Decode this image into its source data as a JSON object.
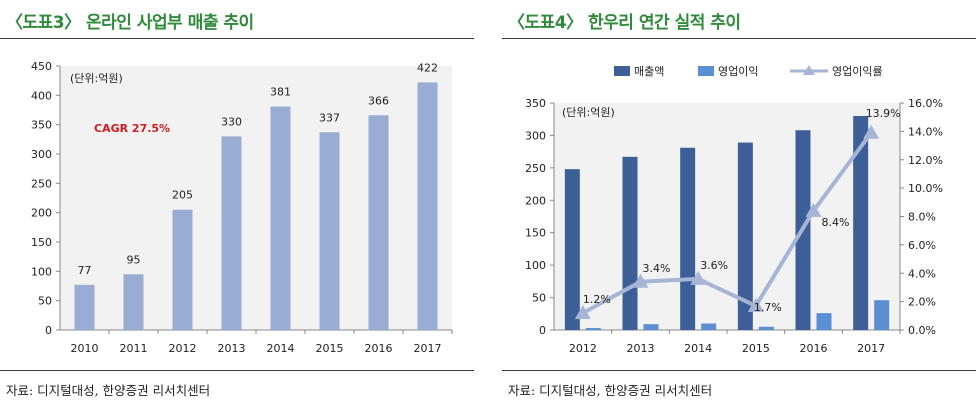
{
  "panels": [
    {
      "title": "〈도표3〉 온라인 사업부 매출 추이",
      "source": "자료: 디지털대성, 한양증권 리서치센터",
      "unit_label": "(단위:억원)",
      "annotation": "CAGR 27.5%"
    },
    {
      "title": "〈도표4〉 한우리 연간 실적 추이",
      "source": "자료: 디지털대성, 한양증권 리서치센터",
      "unit_label": "(단위:억원)"
    }
  ],
  "chart_data": [
    {
      "type": "bar",
      "categories": [
        "2010",
        "2011",
        "2012",
        "2013",
        "2014",
        "2015",
        "2016",
        "2017"
      ],
      "values": [
        77,
        95,
        205,
        330,
        381,
        337,
        366,
        422
      ],
      "ylim": [
        0,
        450
      ],
      "yticks": [
        0,
        50,
        100,
        150,
        200,
        250,
        300,
        350,
        400,
        450
      ],
      "data_labels": [
        "77",
        "95",
        "205",
        "330",
        "381",
        "337",
        "366",
        "422"
      ],
      "grid": false,
      "legend": "none",
      "colors": {
        "bar": "#99acd3"
      }
    },
    {
      "type": "bar",
      "categories": [
        "2012",
        "2013",
        "2014",
        "2015",
        "2016",
        "2017"
      ],
      "series": [
        {
          "name": "매출액",
          "type": "bar",
          "axis": "left",
          "color": "#3d5f98",
          "values": [
            248,
            267,
            281,
            289,
            308,
            330
          ]
        },
        {
          "name": "영업이익",
          "type": "bar",
          "axis": "left",
          "color": "#5b8fd3",
          "values": [
            3,
            9,
            10,
            5,
            26,
            46
          ]
        },
        {
          "name": "영업이익률",
          "type": "line",
          "axis": "right",
          "color": "#a6b5d6",
          "values": [
            1.2,
            3.4,
            3.6,
            1.7,
            8.4,
            13.9
          ]
        }
      ],
      "line_labels": [
        "1.2%",
        "3.4%",
        "3.6%",
        "1.7%",
        "8.4%",
        "13.9%"
      ],
      "ylim_left": [
        0,
        350
      ],
      "yticks_left": [
        0,
        50,
        100,
        150,
        200,
        250,
        300,
        350
      ],
      "ylim_right": [
        0,
        16
      ],
      "yticks_right": [
        "0.0%",
        "2.0%",
        "4.0%",
        "6.0%",
        "8.0%",
        "10.0%",
        "12.0%",
        "14.0%",
        "16.0%"
      ],
      "grid": false,
      "legend": "top"
    }
  ]
}
